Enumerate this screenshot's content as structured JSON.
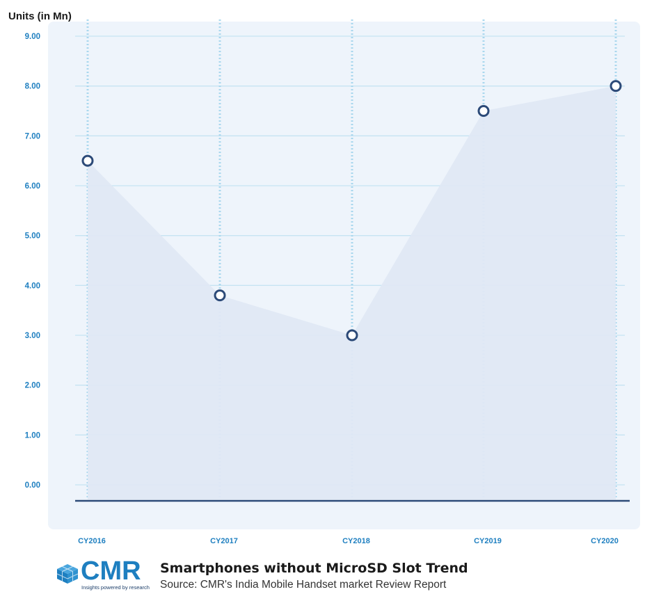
{
  "chart_data": {
    "type": "line",
    "ylabel": "Units (in Mn)",
    "categories": [
      "CY2016",
      "CY2017",
      "CY2018",
      "CY2019",
      "CY2020"
    ],
    "y_ticks": [
      "0.00",
      "1.00",
      "2.00",
      "3.00",
      "4.00",
      "5.00",
      "6.00",
      "7.00",
      "8.00",
      "9.00"
    ],
    "ylim": [
      0,
      9
    ],
    "series": [
      {
        "values": [
          6.5,
          3.8,
          3.0,
          7.5,
          8.0
        ]
      }
    ],
    "grid": true,
    "fill_under_line": true,
    "colors": {
      "axis_tick_label": "#1e7fc0",
      "grid": "#c6e3f2",
      "vertical_dotted": "#a9d7ee",
      "panel_bg": "#eef4fb",
      "area_fill": "#dfe8f4",
      "marker_stroke": "#2c4a78",
      "baseline": "#2c4a78"
    }
  },
  "footer": {
    "logo_text": "CMR",
    "logo_tagline": "Insights powered by research",
    "title": "Smartphones without MicroSD Slot Trend",
    "source": "Source: CMR's India Mobile Handset market Review Report"
  }
}
